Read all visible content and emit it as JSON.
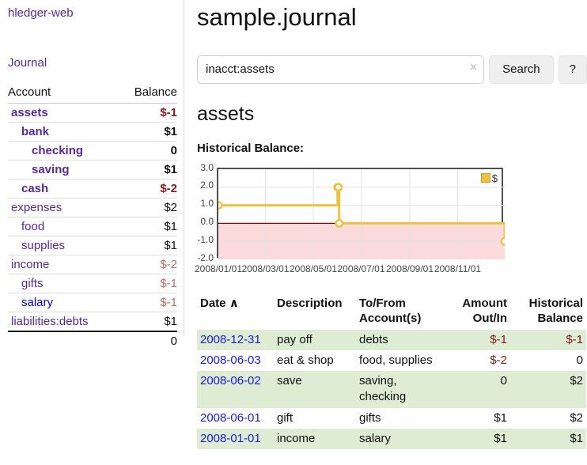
{
  "app": {
    "brand": "hledger-web",
    "nav_journal": "Journal"
  },
  "sidebar": {
    "col_account": "Account",
    "col_balance": "Balance",
    "accounts": [
      {
        "name": "assets",
        "indent": 1,
        "bold": true,
        "balance": "$-1",
        "negative": true,
        "unvisited": false
      },
      {
        "name": "bank",
        "indent": 2,
        "bold": true,
        "balance": "$1",
        "negative": false,
        "unvisited": false
      },
      {
        "name": "checking",
        "indent": 3,
        "bold": true,
        "balance": "0",
        "negative": false,
        "unvisited": false
      },
      {
        "name": "saving",
        "indent": 3,
        "bold": true,
        "balance": "$1",
        "negative": false,
        "unvisited": false
      },
      {
        "name": "cash",
        "indent": 2,
        "bold": true,
        "balance": "$-2",
        "negative": true,
        "unvisited": false
      },
      {
        "name": "expenses",
        "indent": 1,
        "bold": false,
        "balance": "$2",
        "negative": false,
        "unvisited": false
      },
      {
        "name": "food",
        "indent": 2,
        "bold": false,
        "balance": "$1",
        "negative": false,
        "unvisited": false
      },
      {
        "name": "supplies",
        "indent": 2,
        "bold": false,
        "balance": "$1",
        "negative": false,
        "unvisited": false
      },
      {
        "name": "income",
        "indent": 1,
        "bold": false,
        "balance": "$-2",
        "negative": true,
        "unvisited": false
      },
      {
        "name": "gifts",
        "indent": 2,
        "bold": false,
        "balance": "$-1",
        "negative": true,
        "unvisited": false
      },
      {
        "name": "salary",
        "indent": 2,
        "bold": false,
        "balance": "$-1",
        "negative": true,
        "unvisited": true
      },
      {
        "name": "liabilities:debts",
        "indent": 1,
        "bold": false,
        "balance": "$1",
        "negative": false,
        "unvisited": false
      }
    ],
    "total": "0"
  },
  "main": {
    "title": "sample.journal",
    "search": {
      "value": "inacct:assets",
      "clear_icon": "×",
      "button": "Search",
      "help": "?"
    },
    "account_heading": "assets",
    "chart_heading": "Historical Balance:"
  },
  "chart_data": {
    "type": "line",
    "step": true,
    "title": "Historical Balance",
    "legend": [
      {
        "name": "$",
        "color": "#edc240"
      }
    ],
    "series": [
      {
        "name": "$",
        "points": [
          {
            "date": "2008-01-01",
            "value": 1
          },
          {
            "date": "2008-06-01",
            "value": 2
          },
          {
            "date": "2008-06-02",
            "value": 2
          },
          {
            "date": "2008-06-03",
            "value": 0
          },
          {
            "date": "2008-12-31",
            "value": -1
          }
        ]
      }
    ],
    "x_range": [
      "2008-01-01",
      "2008-12-31"
    ],
    "x_ticks": [
      {
        "date": "2008-01-01",
        "label": "2008/01/01"
      },
      {
        "date": "2008-03-01",
        "label": "2008/03/01"
      },
      {
        "date": "2008-05-01",
        "label": "2008/05/01"
      },
      {
        "date": "2008-07-01",
        "label": "2008/07/01"
      },
      {
        "date": "2008-09-01",
        "label": "2008/09/01"
      },
      {
        "date": "2008-11-01",
        "label": "2008/11/01"
      }
    ],
    "ylim": [
      -2.0,
      3.0
    ],
    "y_ticks": [
      "3.0",
      "2.0",
      "1.0",
      "0.0",
      "-1.0",
      "-2.0"
    ],
    "grid": true,
    "negative_region_fill": "#fadada",
    "zero_line_color": "#8b0000",
    "line_color": "#edc240",
    "legend_position": "top-right"
  },
  "register": {
    "headers": {
      "date": "Date",
      "sort_indicator": "∧",
      "description": "Description",
      "accounts": "To/From Account(s)",
      "amount": "Amount Out/In",
      "balance": "Historical Balance"
    },
    "rows": [
      {
        "date": "2008-12-31",
        "description": "pay off",
        "accounts": "debts",
        "amount": "$-1",
        "amount_negative": true,
        "balance": "$-1",
        "balance_negative": true
      },
      {
        "date": "2008-06-03",
        "description": "eat & shop",
        "accounts": "food, supplies",
        "amount": "$-2",
        "amount_negative": true,
        "balance": "0",
        "balance_negative": false
      },
      {
        "date": "2008-06-02",
        "description": "save",
        "accounts": "saving, checking",
        "amount": "0",
        "amount_negative": false,
        "balance": "$2",
        "balance_negative": false
      },
      {
        "date": "2008-06-01",
        "description": "gift",
        "accounts": "gifts",
        "amount": "$1",
        "amount_negative": false,
        "balance": "$2",
        "balance_negative": false
      },
      {
        "date": "2008-01-01",
        "description": "income",
        "accounts": "salary",
        "amount": "$1",
        "amount_negative": false,
        "balance": "$1",
        "balance_negative": false
      }
    ]
  }
}
